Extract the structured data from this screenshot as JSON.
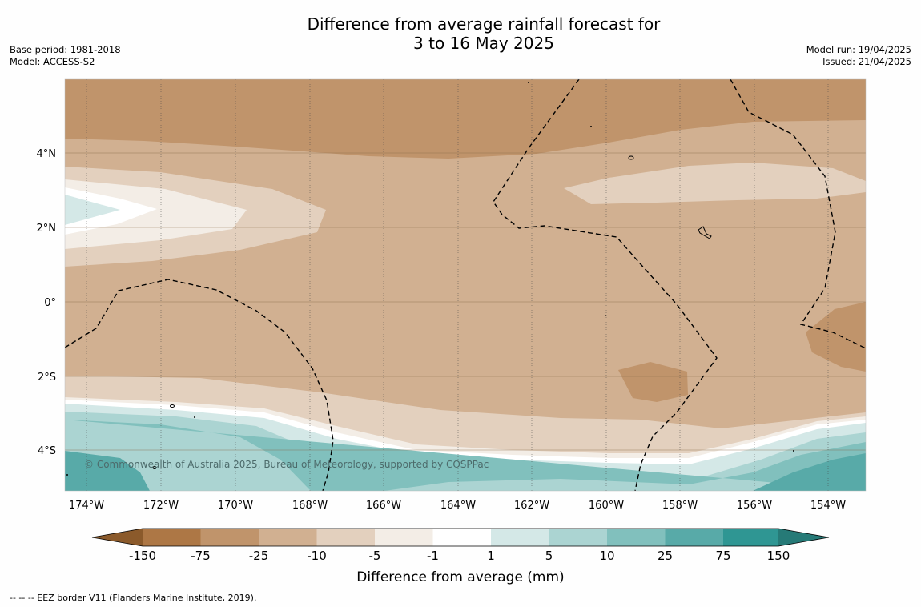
{
  "title_line1": "Difference from average rainfall forecast for",
  "title_line2": "3 to 16 May 2025",
  "meta_left": [
    "Base period: 1981-2018",
    "Model: ACCESS-S2"
  ],
  "meta_right": [
    "Model run: 19/04/2025",
    "Issued: 21/04/2025"
  ],
  "copyright": "© Commonwealth of Australia 2025, Bureau of Meteorology, supported by COSPPac",
  "lat_ticks": [
    "4°N",
    "2°N",
    "0°",
    "2°S",
    "4°S"
  ],
  "lon_ticks": [
    "174°W",
    "172°W",
    "170°W",
    "168°W",
    "166°W",
    "164°W",
    "162°W",
    "160°W",
    "158°W",
    "156°W",
    "154°W"
  ],
  "legend": {
    "title": "Difference from average (mm)",
    "ticks": [
      "-150",
      "-75",
      "-25",
      "-10",
      "-5",
      "-1",
      "1",
      "5",
      "10",
      "25",
      "75",
      "150"
    ],
    "colors": [
      "#8b5a2b",
      "#ad7745",
      "#c0946b",
      "#d1b091",
      "#e3d0be",
      "#f3ede6",
      "#ffffff",
      "#d4e8e7",
      "#abd4d2",
      "#81c0bd",
      "#58aaa8",
      "#2f9693",
      "#267a77"
    ]
  },
  "footer": "--  --  -- EEZ border V11 (Flanders Marine Institute, 2019)."
}
